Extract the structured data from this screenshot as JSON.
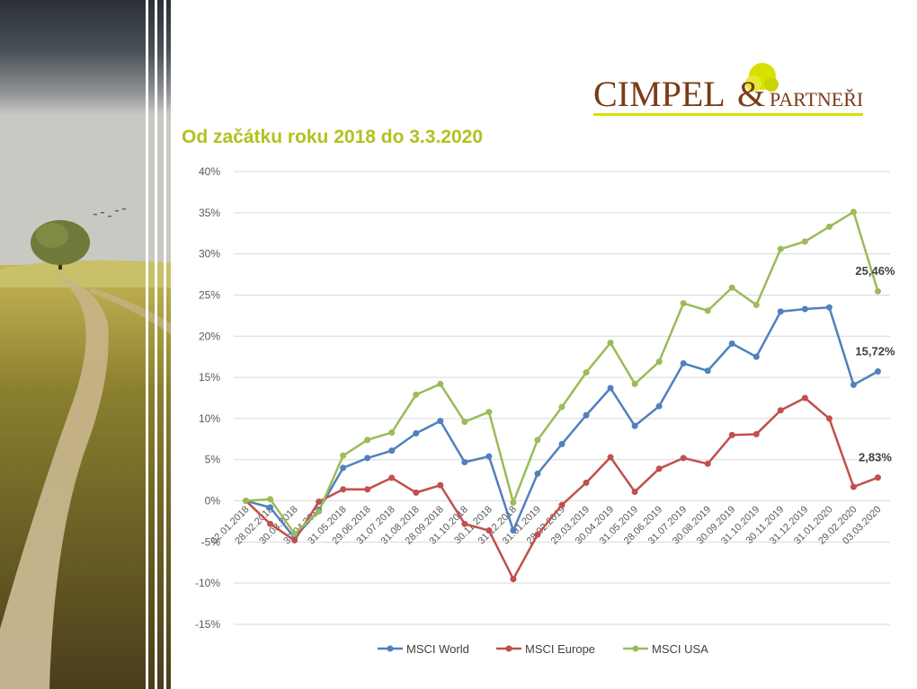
{
  "page": {
    "title": "Od začátku roku 2018 do 3.3.2020"
  },
  "logo": {
    "name_main": "CIMPEL",
    "ampersand": "&",
    "name_suffix": "PARTNEŘI"
  },
  "colors": {
    "title": "#b4c01e",
    "logo_brown": "#7a3b16",
    "logo_yellow": "#d8e000"
  },
  "chart_data": {
    "type": "line",
    "categories": [
      "02.01.2018",
      "28.02.2018",
      "30.03.2018",
      "30.04.2018",
      "31.05.2018",
      "29.06.2018",
      "31.07.2018",
      "31.08.2018",
      "28.09.2018",
      "31.10.2018",
      "30.11.2018",
      "31.12.2018",
      "31.01.2019",
      "28.02.2019",
      "29.03.2019",
      "30.04.2019",
      "31.05.2019",
      "28.06.2019",
      "31.07.2019",
      "30.08.2019",
      "30.09.2019",
      "31.10.2019",
      "30.11.2019",
      "31.12.2019",
      "31.01.2020",
      "29.02.2020",
      "03.03.2020"
    ],
    "series": [
      {
        "name": "MSCI World",
        "color": "#4f81bd",
        "values": [
          0,
          -0.8,
          -4.5,
          -1.1,
          4.0,
          5.2,
          6.1,
          8.2,
          9.7,
          4.7,
          5.4,
          -3.6,
          3.3,
          6.9,
          10.4,
          13.7,
          9.1,
          11.5,
          16.7,
          15.8,
          19.1,
          17.5,
          23.0,
          23.3,
          23.5,
          14.1,
          15.72
        ],
        "end_label": "15,72%"
      },
      {
        "name": "MSCI Europe",
        "color": "#c0504d",
        "values": [
          0,
          -2.8,
          -4.8,
          -0.1,
          1.4,
          1.4,
          2.8,
          1.0,
          1.9,
          -2.8,
          -3.6,
          -9.5,
          -4.1,
          -0.5,
          2.2,
          5.3,
          1.1,
          3.9,
          5.2,
          4.5,
          8.0,
          8.1,
          11.0,
          12.5,
          10.0,
          1.7,
          2.83
        ],
        "end_label": "2,83%"
      },
      {
        "name": "MSCI USA",
        "color": "#9bbb59",
        "values": [
          0,
          0.2,
          -4.0,
          -1.3,
          5.5,
          7.4,
          8.3,
          12.9,
          14.2,
          9.6,
          10.8,
          -0.2,
          7.4,
          11.4,
          15.6,
          19.2,
          14.2,
          16.9,
          24.0,
          23.1,
          25.9,
          23.8,
          30.6,
          31.5,
          33.3,
          35.1,
          25.46
        ],
        "end_label": "25,46%"
      }
    ],
    "yticks": [
      "40%",
      "35%",
      "30%",
      "25%",
      "20%",
      "15%",
      "10%",
      "5%",
      "0%",
      "-5%",
      "-10%",
      "-15%"
    ],
    "ylim": [
      -15,
      40
    ],
    "ystep": 5,
    "grid": true,
    "legend_position": "bottom"
  }
}
